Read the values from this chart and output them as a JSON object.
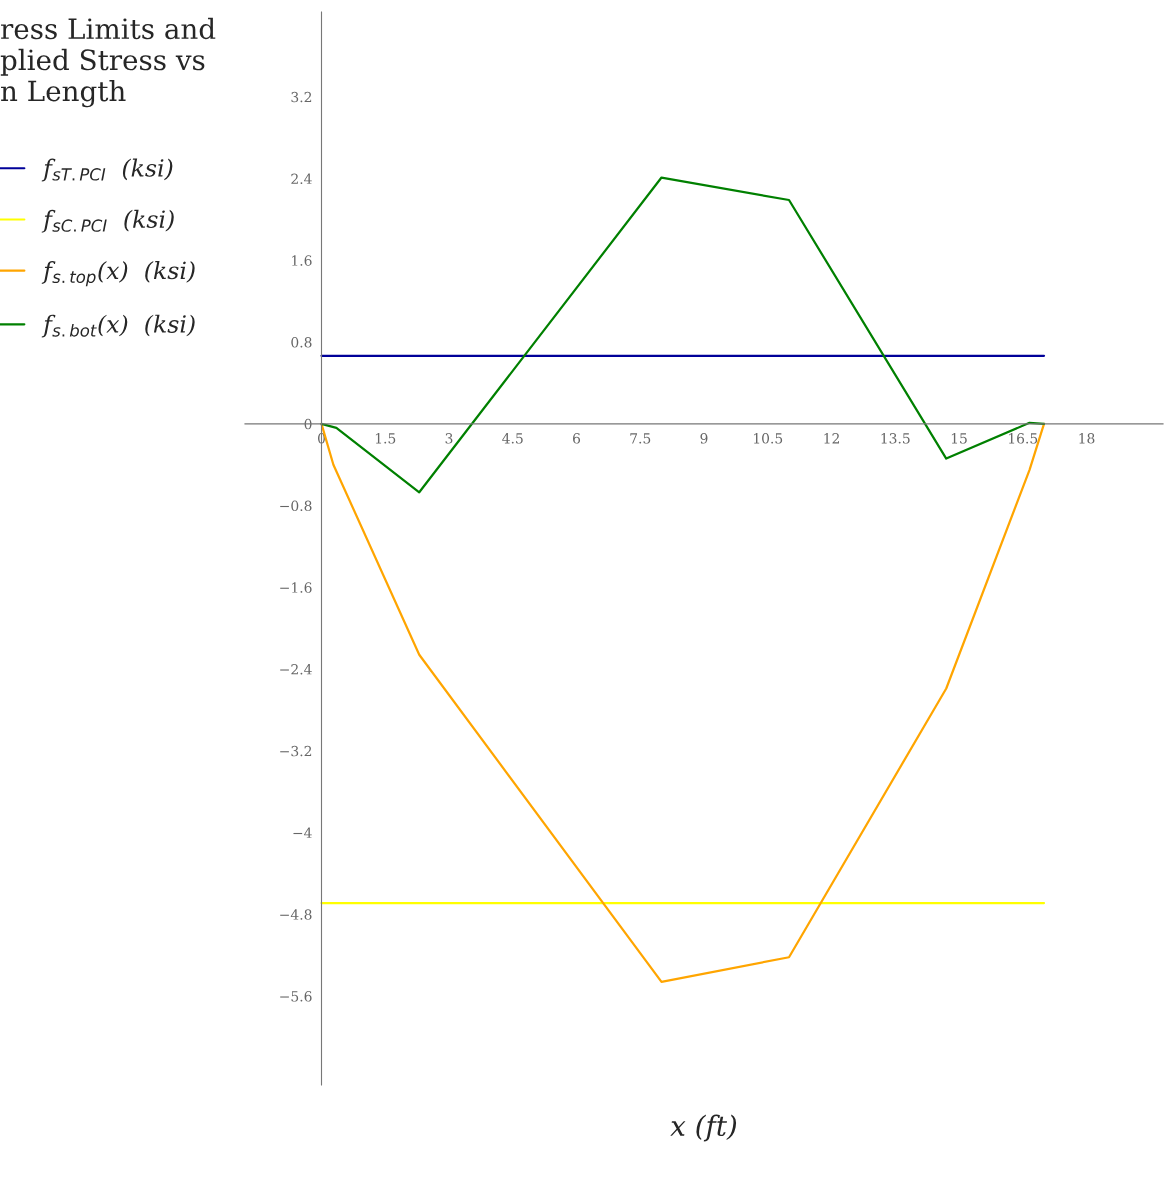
{
  "chart_data": {
    "type": "line",
    "title": "ress Limits and\nplied Stress vs\nn Length",
    "xlabel": "x (ft)",
    "xlim": [
      -1.8,
      19.8
    ],
    "ylim": [
      -6.47,
      4.03
    ],
    "xticks": [
      0,
      1.5,
      3,
      4.5,
      6,
      7.5,
      9,
      10.5,
      12,
      13.5,
      15,
      16.5,
      18
    ],
    "yticks": [
      {
        "value": -5.6,
        "label": "−5.6"
      },
      {
        "value": -4.8,
        "label": "−4.8"
      },
      {
        "value": -4,
        "label": "−4"
      },
      {
        "value": -3.2,
        "label": "−3.2"
      },
      {
        "value": -2.4,
        "label": "−2.4"
      },
      {
        "value": -1.6,
        "label": "−1.6"
      },
      {
        "value": -0.8,
        "label": "−0.8"
      },
      0,
      0.8,
      1.6,
      2.4,
      3.2
    ],
    "legend": "left",
    "marker": "none",
    "line_style": "solid",
    "series": [
      {
        "name": "f$_{sT.PCI}$  (ksi)",
        "color": "#000099",
        "x": [
          0,
          17
        ],
        "values": [
          0.665,
          0.665
        ]
      },
      {
        "name": "f$_{sC.PCI}$  (ksi)",
        "color": "#ffff00",
        "x": [
          0,
          17
        ],
        "values": [
          -4.69,
          -4.69
        ]
      },
      {
        "name": "f$_{s.top}$(x)  (ksi)",
        "color": "#ffa500",
        "x": [
          0,
          0.28,
          2.3,
          8.0,
          11.0,
          14.7,
          16.66,
          17
        ],
        "values": [
          0,
          -0.4,
          -2.26,
          -5.46,
          -5.22,
          -2.59,
          -0.45,
          0
        ]
      },
      {
        "name": "f$_{s.bot}$(x)  (ksi)",
        "color": "#008000",
        "x": [
          0,
          0.35,
          2.3,
          8.0,
          11.0,
          14.7,
          16.66,
          17
        ],
        "values": [
          0,
          -0.04,
          -0.67,
          2.41,
          2.19,
          -0.34,
          0.01,
          0
        ]
      }
    ]
  }
}
